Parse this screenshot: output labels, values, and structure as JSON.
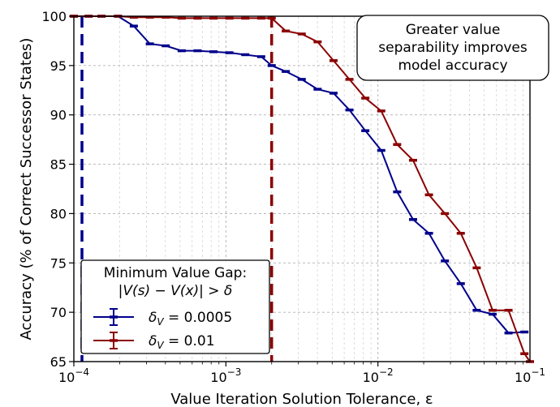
{
  "chart_data": {
    "type": "line",
    "xscale": "log",
    "xlim": [
      0.0001,
      0.1
    ],
    "ylim": [
      65,
      100
    ],
    "xlabel": "Value Iteration Solution Tolerance, ε",
    "ylabel": "Accuracy (% of Correct Successor States)",
    "x_ticks": [
      {
        "value": 0.0001,
        "base": "10",
        "exp": "−4"
      },
      {
        "value": 0.001,
        "base": "10",
        "exp": "−3"
      },
      {
        "value": 0.01,
        "base": "10",
        "exp": "−2"
      },
      {
        "value": 0.1,
        "base": "10",
        "exp": "−1"
      }
    ],
    "y_ticks": [
      "65",
      "70",
      "75",
      "80",
      "85",
      "90",
      "95",
      "100"
    ],
    "grid": true,
    "legend": {
      "position": "bottom-left",
      "title_line1": "Minimum Value Gap:",
      "title_line2": "|V(s) − V(x)| > δ"
    },
    "annotation": {
      "lines": [
        "Greater value",
        "separability improves",
        "model accuracy"
      ],
      "position": "top-right"
    },
    "series": [
      {
        "name": "δ_V = 0.0005",
        "label_symbol": "δ",
        "label_sub": "V",
        "label_value": " = 0.0005",
        "color": "#00008b",
        "threshold_x": 0.0001,
        "x": [
          0.0001,
          0.000125,
          0.000152,
          0.000195,
          0.000248,
          0.000316,
          0.000402,
          0.000512,
          0.000651,
          0.000829,
          0.001054,
          0.001341,
          0.001707,
          0.002,
          0.002477,
          0.003152,
          0.004011,
          0.005104,
          0.006494,
          0.008263,
          0.010515,
          0.013379,
          0.017024,
          0.021662,
          0.027564,
          0.035074,
          0.04463,
          0.05679,
          0.072262,
          0.09195
        ],
        "y": [
          100.0,
          100.0,
          100.0,
          100.0,
          99.0,
          97.2,
          97.0,
          96.5,
          96.5,
          96.4,
          96.3,
          96.1,
          95.9,
          95.0,
          94.4,
          93.6,
          92.6,
          92.2,
          90.5,
          88.4,
          86.4,
          82.2,
          79.4,
          78.0,
          75.2,
          72.9,
          70.2,
          69.8,
          67.9,
          68.0
        ]
      },
      {
        "name": "δ_V = 0.01",
        "label_symbol": "δ",
        "label_sub": "V",
        "label_value": " = 0.01",
        "color": "#8b0000",
        "threshold_x": 0.002,
        "x": [
          0.0001,
          0.000125,
          0.000152,
          0.000195,
          0.000248,
          0.000316,
          0.000402,
          0.000512,
          0.000651,
          0.000829,
          0.001054,
          0.001341,
          0.001707,
          0.002,
          0.002477,
          0.003152,
          0.004011,
          0.005104,
          0.006494,
          0.008263,
          0.010515,
          0.013379,
          0.017024,
          0.021662,
          0.027564,
          0.035074,
          0.04463,
          0.05679,
          0.072262,
          0.09195,
          0.1
        ],
        "y": [
          100.0,
          100.0,
          100.0,
          100.0,
          99.9,
          99.9,
          99.9,
          99.8,
          99.8,
          99.8,
          99.8,
          99.8,
          99.8,
          99.8,
          98.5,
          98.2,
          97.4,
          95.5,
          93.6,
          91.7,
          90.4,
          87.0,
          85.4,
          81.9,
          80.0,
          78.0,
          74.5,
          70.2,
          70.2,
          65.8,
          65.0
        ]
      }
    ]
  }
}
